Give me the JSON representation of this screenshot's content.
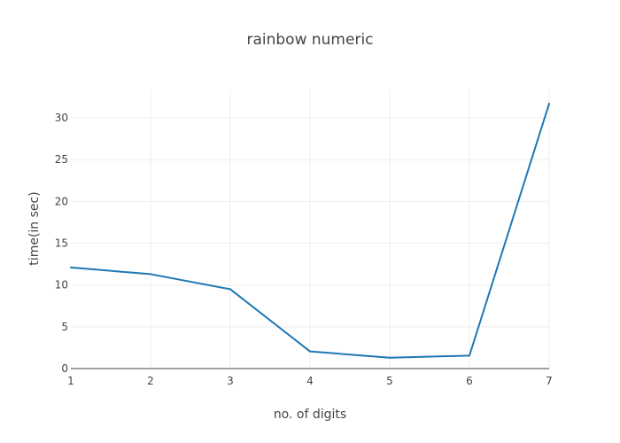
{
  "chart_data": {
    "type": "line",
    "title": "rainbow numeric",
    "xlabel": "no. of digits",
    "ylabel": "time(in sec)",
    "x": [
      1,
      2,
      3,
      4,
      5,
      6,
      7
    ],
    "series": [
      {
        "values": [
          12.1,
          11.3,
          9.5,
          2.05,
          1.3,
          1.55,
          31.7
        ],
        "color": "#1f77b4"
      }
    ],
    "xticks": [
      1,
      2,
      3,
      4,
      5,
      6,
      7
    ],
    "yticks": [
      0,
      5,
      10,
      15,
      20,
      25,
      30
    ],
    "xlim": [
      1,
      7
    ],
    "ylim": [
      0,
      33.4
    ],
    "grid": true,
    "legend": "none"
  }
}
